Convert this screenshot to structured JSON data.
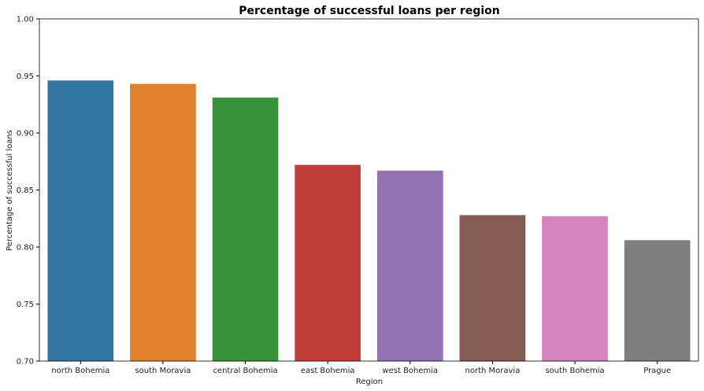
{
  "chart_data": {
    "type": "bar",
    "title": "Percentage of successful loans per region",
    "xlabel": "Region",
    "ylabel": "Percentage of successful loans",
    "ylim": [
      0.7,
      1.0
    ],
    "yticks": [
      "0.70",
      "0.75",
      "0.80",
      "0.85",
      "0.90",
      "0.95",
      "1.00"
    ],
    "categories": [
      "north Bohemia",
      "south Moravia",
      "central Bohemia",
      "east Bohemia",
      "west Bohemia",
      "north Moravia",
      "south Bohemia",
      "Prague"
    ],
    "values": [
      0.946,
      0.943,
      0.931,
      0.872,
      0.867,
      0.828,
      0.827,
      0.806
    ],
    "colors": [
      "#3274a1",
      "#e1812c",
      "#3a923a",
      "#c03d3e",
      "#9372b2",
      "#845b53",
      "#d684bd",
      "#7f7f7f"
    ],
    "grid": false,
    "legend": "none"
  }
}
